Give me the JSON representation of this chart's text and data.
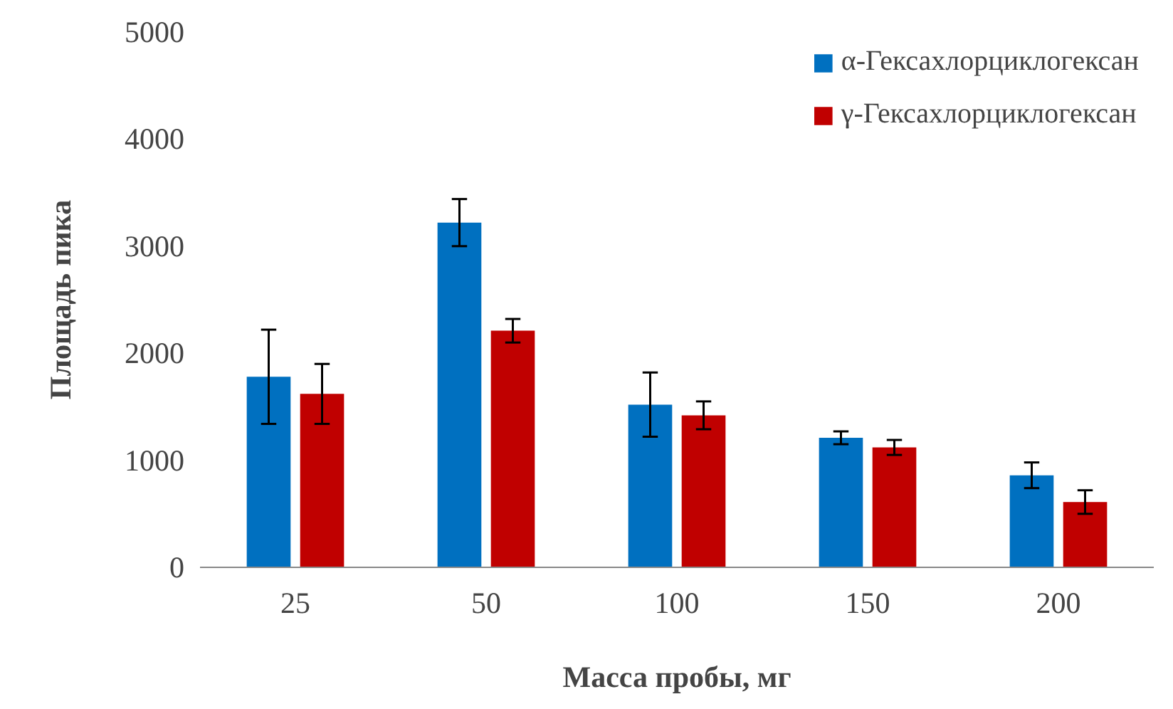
{
  "chart_data": {
    "type": "bar",
    "xlabel": "Масса пробы, мг",
    "ylabel": "Площадь пика",
    "categories": [
      "25",
      "50",
      "100",
      "150",
      "200"
    ],
    "series": [
      {
        "name": "α-Гексахлорциклогексан",
        "color": "#0070c0",
        "values": [
          1780,
          3220,
          1520,
          1210,
          860
        ],
        "errors": [
          440,
          220,
          300,
          60,
          120
        ]
      },
      {
        "name": "γ-Гексахлорциклогексан",
        "color": "#c00000",
        "values": [
          1620,
          2210,
          1420,
          1120,
          610
        ],
        "errors": [
          280,
          110,
          130,
          70,
          110
        ]
      }
    ],
    "ylim": [
      0,
      5000
    ],
    "yticks": [
      0,
      1000,
      2000,
      3000,
      4000,
      5000
    ],
    "grid": false,
    "legend": "top right"
  }
}
